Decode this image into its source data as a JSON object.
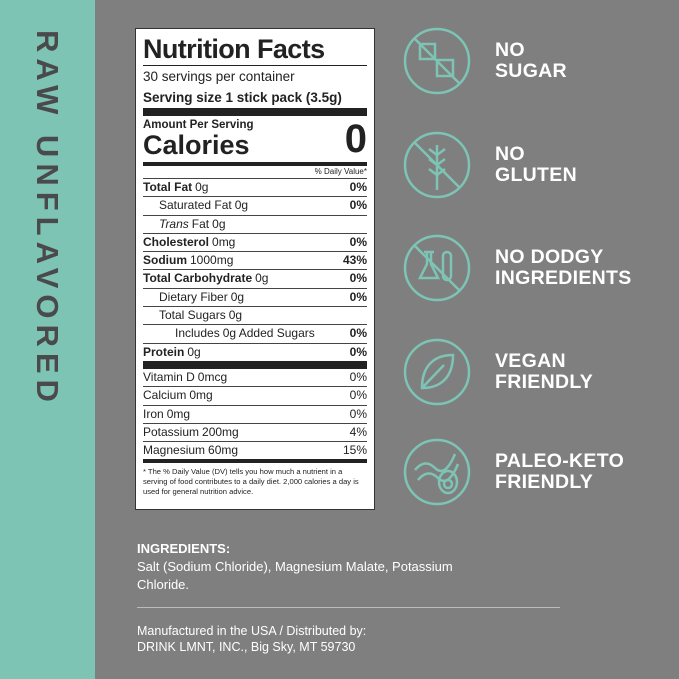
{
  "side_label": "RAW UNFLAVORED",
  "nutrition": {
    "title": "Nutrition Facts",
    "servings": "30 servings per container",
    "serving_size": "Serving size 1 stick pack (3.5g)",
    "amount_per_serving": "Amount Per Serving",
    "calories_label": "Calories",
    "calories_value": "0",
    "dv_header": "% Daily Value*",
    "rows": [
      {
        "name": "Total Fat",
        "amount": "0g",
        "dv": "0%",
        "bold": true,
        "indent": 0
      },
      {
        "name": "Saturated Fat",
        "amount": "0g",
        "dv": "0%",
        "bold": false,
        "indent": 1
      },
      {
        "name_italic": "Trans",
        "name": "Fat",
        "amount": "0g",
        "bold": false,
        "indent": 1
      },
      {
        "name": "Cholesterol",
        "amount": "0mg",
        "dv": "0%",
        "bold": true,
        "indent": 0
      },
      {
        "name": "Sodium",
        "amount": "1000mg",
        "dv": "43%",
        "bold": true,
        "indent": 0
      },
      {
        "name": "Total Carbohydrate",
        "amount": "0g",
        "dv": "0%",
        "bold": true,
        "indent": 0
      },
      {
        "name": "Dietary Fiber",
        "amount": "0g",
        "dv": "0%",
        "bold": false,
        "indent": 1
      },
      {
        "name": "Total Sugars",
        "amount": "0g",
        "bold": false,
        "indent": 1
      },
      {
        "name": "Includes",
        "amount": "0g Added Sugars",
        "dv": "0%",
        "bold": false,
        "indent": 2
      },
      {
        "name": "Protein",
        "amount": "0g",
        "dv": "0%",
        "bold": true,
        "indent": 0
      }
    ],
    "vitamins": [
      {
        "name": "Vitamin D",
        "amount": "0mcg",
        "dv": "0%"
      },
      {
        "name": "Calcium",
        "amount": "0mg",
        "dv": "0%"
      },
      {
        "name": "Iron",
        "amount": "0mg",
        "dv": "0%"
      },
      {
        "name": "Potassium",
        "amount": "200mg",
        "dv": "4%"
      },
      {
        "name": "Magnesium",
        "amount": "60mg",
        "dv": "15%"
      }
    ],
    "footnote": "* The % Daily Value (DV) tells you how much a nutrient in a serving of food contributes to a daily diet. 2,000 calories a day is used for general nutrition advice."
  },
  "badges": [
    {
      "lines": [
        "NO",
        "SUGAR"
      ]
    },
    {
      "lines": [
        "NO",
        "GLUTEN"
      ]
    },
    {
      "lines": [
        "NO DODGY",
        "INGREDIENTS"
      ]
    },
    {
      "lines": [
        "VEGAN",
        "FRIENDLY"
      ]
    },
    {
      "lines": [
        "PALEO-KETO",
        "FRIENDLY"
      ]
    }
  ],
  "ingredients": {
    "heading": "INGREDIENTS:",
    "text": "Salt (Sodium Chloride), Magnesium Malate, Potassium Chloride."
  },
  "manufacturer": {
    "line1": "Manufactured in the USA / Distributed by:",
    "line2": "DRINK LMNT, INC., Big Sky, MT 59730"
  }
}
